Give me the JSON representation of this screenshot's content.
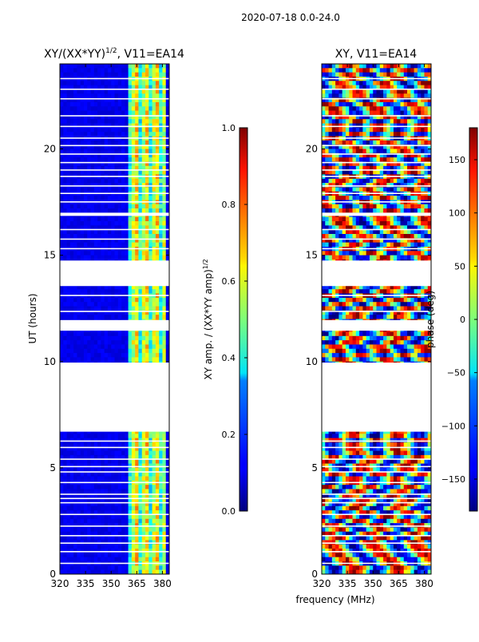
{
  "chart_data": {
    "suptitle": "2020-07-18 0.0-24.0",
    "shared_xlabel": "frequency (MHz)",
    "panels": [
      {
        "type": "heatmap",
        "title_prefix": "XY/(XX*YY)",
        "title_sup": "1/2",
        "title_suffix": ", V11=EA14",
        "ylabel": "UT (hours)",
        "xlim": [
          320,
          384
        ],
        "ylim": [
          0,
          24
        ],
        "xticks": [
          320,
          335,
          350,
          365,
          380
        ],
        "yticks": [
          0,
          5,
          10,
          15,
          20
        ],
        "hot_band_mhz": [
          361,
          381
        ],
        "colorbar": {
          "cmap": "jet",
          "range": [
            0.0,
            1.0
          ],
          "ticks": [
            "0.0",
            "0.2",
            "0.4",
            "0.6",
            "0.8",
            "1.0"
          ],
          "tick_values": [
            0.0,
            0.2,
            0.4,
            0.6,
            0.8,
            1.0
          ],
          "label_prefix": "XY amp. / (XX*YY amp)",
          "label_sup": "1/2"
        }
      },
      {
        "type": "heatmap",
        "title": "XY, V11=EA14",
        "xlim": [
          320,
          384
        ],
        "ylim": [
          0,
          24
        ],
        "xticks": [
          320,
          335,
          350,
          365,
          380
        ],
        "yticks": [
          0,
          5,
          10,
          15,
          20
        ],
        "colorbar": {
          "cmap": "jet",
          "range": [
            -180,
            180
          ],
          "ticks": [
            "150",
            "100",
            "50",
            "0",
            "−50",
            "−100",
            "−150"
          ],
          "tick_values": [
            150,
            100,
            50,
            0,
            -50,
            -100,
            -150
          ],
          "label": "phase (deg)"
        }
      }
    ],
    "data_gaps_hours": [
      [
        6.7,
        9.95
      ],
      [
        11.45,
        11.95
      ],
      [
        13.55,
        14.75
      ],
      [
        16.85,
        17.0
      ]
    ],
    "thin_gaps_hours": [
      0.5,
      1.05,
      1.45,
      1.8,
      2.25,
      2.8,
      3.35,
      3.55,
      3.75,
      4.3,
      4.8,
      5.05,
      5.4,
      5.95,
      6.25,
      12.35,
      13.1,
      15.3,
      15.75,
      16.2,
      17.5,
      17.9,
      18.25,
      18.7,
      19.0,
      19.35,
      19.75,
      20.15,
      20.5,
      21.05,
      21.55,
      22.35,
      22.8,
      23.3
    ]
  }
}
